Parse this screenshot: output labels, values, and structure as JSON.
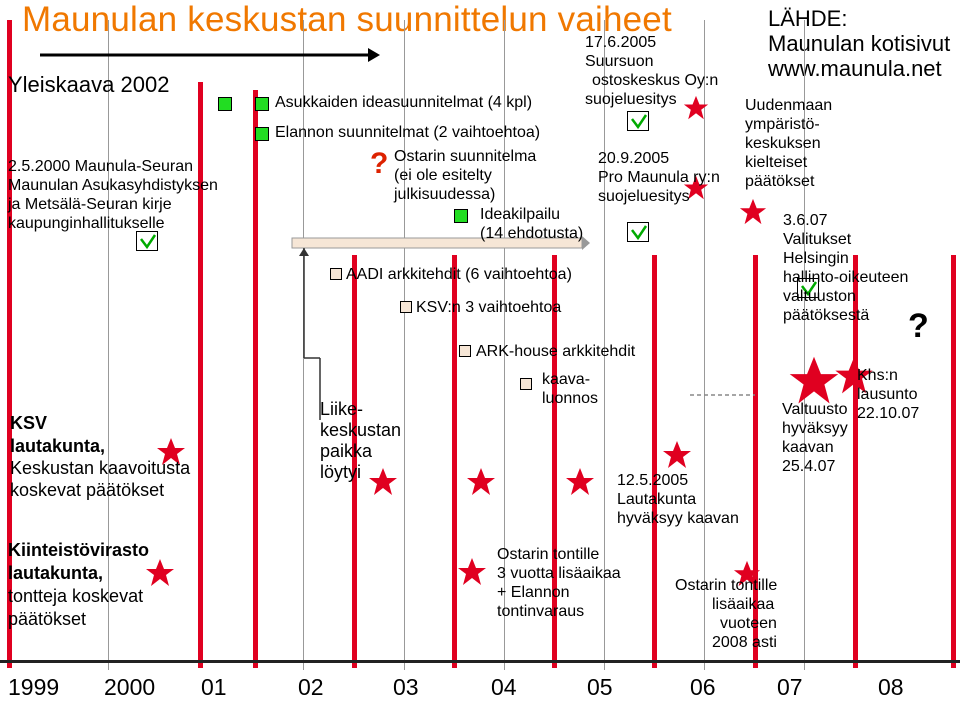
{
  "title": "Maunulan keskustan suunnittelun vaiheet",
  "source": {
    "label": "LÄHDE:",
    "line1": "Maunulan kotisivut",
    "line2": "www.maunula.net"
  },
  "left": {
    "yleiskaava": "Yleiskaava 2002",
    "letter": [
      "2.5.2000 Maunula-Seuran",
      "Maunulan Asukasyhdistyksen",
      "ja Metsälä-Seuran kirje",
      "kaupunginhallitukselle"
    ],
    "ksv_bold": "KSV",
    "ksv_lines": [
      "lautakunta,",
      "lautakunta,",
      "Keskustan kaavoitusta",
      "koskevat päätökset"
    ],
    "kiint_bold": "Kiinteistövirasto",
    "kiint_lines": [
      "lautakunta,",
      "tontteja koskevat",
      "päätökset"
    ]
  },
  "items": {
    "asukkaiden": "Asukkaiden ideasuunnitelmat (4 kpl)",
    "elannon": "Elannon suunnitelmat (2 vaihtoehtoa)",
    "question_mark": "?",
    "ostarin": [
      "Ostarin suunnitelma",
      "(ei ole esitelty",
      "julkisuudessa)"
    ],
    "ideakilpailu": [
      "Ideakilpailu",
      "(14 ehdotusta)"
    ],
    "aadi": "AADI arkkitehdit (6 vaihtoehtoa)",
    "ksv3": "KSV:n 3 vaihtoehtoa",
    "arkhouse": "ARK-house arkkitehdit",
    "kaava": [
      "kaava-",
      "luonnos"
    ],
    "liike": [
      "Liike-",
      "keskustan",
      "paikka",
      "löytyi"
    ],
    "suursuon": [
      "17.6.2005",
      "Suursuon",
      "ostoskeskus Oy:n",
      "suojeluesitys"
    ],
    "promaunula": [
      "20.9.2005",
      "Pro Maunula ry:n",
      "suojeluesitys"
    ],
    "lautakunta": [
      "12.5.2005",
      "Lautakunta",
      "hyväksyy kaavan"
    ],
    "tontti1": [
      "Ostarin tontille",
      "3 vuotta lisäaikaa",
      "+ Elannon",
      "tontinvaraus"
    ],
    "tontti2": [
      "Ostarin tontille",
      "lisäaikaa",
      "vuoteen",
      "2008 asti"
    ],
    "uudenmaan": [
      "Uudenmaan",
      "ympäristö-",
      "keskuksen",
      "kielteiset",
      "päätökset"
    ],
    "valitukset": [
      "3.6.07",
      "Valitukset",
      "Helsingin",
      "hallinto-oikeuteen",
      "valtuuston",
      "päätöksestä"
    ],
    "question_right": "?",
    "khs": [
      "Khs:n",
      "lausunto",
      "22.10.07"
    ],
    "valtuusto": [
      "Valtuusto",
      "hyväksyy",
      "kaavan",
      "25.4.07"
    ]
  },
  "years": [
    "1999",
    "2000",
    "01",
    "02",
    "03",
    "04",
    "05",
    "06",
    "07",
    "08"
  ],
  "colors": {
    "title": "#f07800",
    "timeline_red": "#e00020",
    "check_square": "#22dd22",
    "star": "#e00020",
    "bar": "#f6e6d6"
  }
}
